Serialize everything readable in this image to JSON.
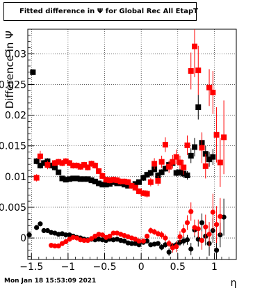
{
  "title": "Fitted difference in  Ψ  for Global Rec All EtapT",
  "footer": "Mon Jan 18 15:53:09 2021",
  "chart_data": {
    "type": "scatter",
    "title": "Fitted difference in  Ψ  for Global Rec All EtapT",
    "xlabel": "η",
    "ylabel": "Difference in  Ψ",
    "xlim": [
      -1.55,
      1.3
    ],
    "ylim": [
      -0.0035,
      0.034
    ],
    "x_ticks": [
      -1.5,
      -1,
      -0.5,
      0,
      0.5,
      1
    ],
    "x_tick_labels": [
      "−1.5",
      "−1",
      "−0.5",
      "0",
      "0.5",
      "1"
    ],
    "y_ticks": [
      0,
      0.005,
      0.01,
      0.015,
      0.02,
      0.025,
      0.03
    ],
    "y_tick_labels": [
      "0",
      "0.005",
      "0.01",
      "0.015",
      "0.02",
      "0.025",
      "0.03"
    ],
    "grid": true,
    "series": [
      {
        "color": "#000000",
        "marker": "square",
        "points": [
          [
            -1.48,
            0.027,
            0.0005
          ],
          [
            -1.43,
            0.0125,
            0.0005
          ],
          [
            -1.38,
            0.0118,
            0.0005
          ],
          [
            -1.33,
            0.0122,
            0.0005
          ],
          [
            -1.28,
            0.0125,
            0.0005
          ],
          [
            -1.23,
            0.0118,
            0.0005
          ],
          [
            -1.18,
            0.0115,
            0.0005
          ],
          [
            -1.13,
            0.0107,
            0.0004
          ],
          [
            -1.08,
            0.0097,
            0.0004
          ],
          [
            -1.03,
            0.0095,
            0.0004
          ],
          [
            -0.98,
            0.0096,
            0.0004
          ],
          [
            -0.93,
            0.0097,
            0.0004
          ],
          [
            -0.88,
            0.0097,
            0.0004
          ],
          [
            -0.83,
            0.0096,
            0.0004
          ],
          [
            -0.78,
            0.0096,
            0.0004
          ],
          [
            -0.73,
            0.0096,
            0.0004
          ],
          [
            -0.68,
            0.0094,
            0.0004
          ],
          [
            -0.63,
            0.0092,
            0.0004
          ],
          [
            -0.58,
            0.0089,
            0.0004
          ],
          [
            -0.53,
            0.0087,
            0.0004
          ],
          [
            -0.48,
            0.0087,
            0.0004
          ],
          [
            -0.43,
            0.0088,
            0.0004
          ],
          [
            -0.38,
            0.0091,
            0.0004
          ],
          [
            -0.33,
            0.0089,
            0.0004
          ],
          [
            -0.28,
            0.0089,
            0.0004
          ],
          [
            -0.23,
            0.0087,
            0.0004
          ],
          [
            -0.18,
            0.0085,
            0.0004
          ],
          [
            -0.13,
            0.0085,
            0.0004
          ],
          [
            -0.08,
            0.0088,
            0.0004
          ],
          [
            -0.03,
            0.0091,
            0.0004
          ],
          [
            0.03,
            0.0098,
            0.0005
          ],
          [
            0.08,
            0.0103,
            0.0005
          ],
          [
            0.13,
            0.0106,
            0.0005
          ],
          [
            0.18,
            0.0112,
            0.0005
          ],
          [
            0.23,
            0.0102,
            0.0005
          ],
          [
            0.28,
            0.0107,
            0.0005
          ],
          [
            0.33,
            0.0113,
            0.0005
          ],
          [
            0.38,
            0.0119,
            0.0006
          ],
          [
            0.43,
            0.0122,
            0.0006
          ],
          [
            0.48,
            0.0106,
            0.0006
          ],
          [
            0.53,
            0.0107,
            0.0006
          ],
          [
            0.58,
            0.0105,
            0.0007
          ],
          [
            0.63,
            0.0102,
            0.0007
          ],
          [
            0.68,
            0.0134,
            0.0012
          ],
          [
            0.73,
            0.0148,
            0.0015
          ],
          [
            0.78,
            0.0213,
            0.002
          ],
          [
            0.83,
            0.0155,
            0.0015
          ],
          [
            0.88,
            0.0137,
            0.0013
          ],
          [
            0.93,
            0.0128,
            0.0012
          ],
          [
            0.98,
            0.0132,
            0.0013
          ]
        ]
      },
      {
        "color": "#ff0000",
        "marker": "square",
        "points": [
          [
            -1.43,
            0.0098,
            0.0006
          ],
          [
            -1.38,
            0.0133,
            0.0009
          ],
          [
            -1.28,
            0.0119,
            0.0007
          ],
          [
            -1.18,
            0.0122,
            0.0005
          ],
          [
            -1.13,
            0.0124,
            0.0005
          ],
          [
            -1.08,
            0.0122,
            0.0005
          ],
          [
            -1.03,
            0.0125,
            0.0005
          ],
          [
            -0.98,
            0.0122,
            0.0005
          ],
          [
            -0.93,
            0.0118,
            0.0005
          ],
          [
            -0.88,
            0.0118,
            0.0005
          ],
          [
            -0.83,
            0.0116,
            0.0005
          ],
          [
            -0.78,
            0.0119,
            0.0005
          ],
          [
            -0.73,
            0.0115,
            0.0005
          ],
          [
            -0.68,
            0.0121,
            0.0005
          ],
          [
            -0.63,
            0.0118,
            0.0005
          ],
          [
            -0.58,
            0.0109,
            0.0005
          ],
          [
            -0.53,
            0.0101,
            0.0005
          ],
          [
            -0.48,
            0.0095,
            0.0005
          ],
          [
            -0.43,
            0.0094,
            0.0005
          ],
          [
            -0.38,
            0.0095,
            0.0005
          ],
          [
            -0.33,
            0.0094,
            0.0005
          ],
          [
            -0.28,
            0.0092,
            0.0005
          ],
          [
            -0.23,
            0.0092,
            0.0005
          ],
          [
            -0.18,
            0.0091,
            0.0005
          ],
          [
            -0.13,
            0.0085,
            0.0005
          ],
          [
            -0.08,
            0.0082,
            0.0005
          ],
          [
            -0.03,
            0.0076,
            0.0005
          ],
          [
            0.03,
            0.0073,
            0.0005
          ],
          [
            0.08,
            0.0072,
            0.0006
          ],
          [
            0.13,
            0.0091,
            0.0007
          ],
          [
            0.18,
            0.0121,
            0.0009
          ],
          [
            0.23,
            0.0093,
            0.0008
          ],
          [
            0.28,
            0.0124,
            0.001
          ],
          [
            0.33,
            0.0152,
            0.0012
          ],
          [
            0.38,
            0.0116,
            0.001
          ],
          [
            0.43,
            0.0124,
            0.0011
          ],
          [
            0.48,
            0.0132,
            0.0012
          ],
          [
            0.53,
            0.0123,
            0.0011
          ],
          [
            0.58,
            0.0115,
            0.0012
          ],
          [
            0.63,
            0.0151,
            0.0016
          ],
          [
            0.68,
            0.0272,
            0.003
          ],
          [
            0.73,
            0.0312,
            0.005
          ],
          [
            0.78,
            0.0273,
            0.004
          ],
          [
            0.83,
            0.0147,
            0.0025
          ],
          [
            0.88,
            0.0117,
            0.002
          ],
          [
            0.93,
            0.0245,
            0.003
          ],
          [
            0.98,
            0.0237,
            0.0035
          ],
          [
            1.03,
            0.0168,
            0.0045
          ],
          [
            1.08,
            0.0123,
            0.004
          ],
          [
            1.13,
            0.0164,
            0.006
          ]
        ]
      },
      {
        "color": "#000000",
        "marker": "circle",
        "points": [
          [
            -1.53,
            0.0005,
            0.0003
          ],
          [
            -1.43,
            0.0017,
            0.0004
          ],
          [
            -1.38,
            0.0023,
            0.0004
          ],
          [
            -1.33,
            0.0012,
            0.0003
          ],
          [
            -1.28,
            0.0012,
            0.0003
          ],
          [
            -1.23,
            0.0009,
            0.0003
          ],
          [
            -1.18,
            0.0008,
            0.0003
          ],
          [
            -1.13,
            0.0006,
            0.0003
          ],
          [
            -1.08,
            0.0007,
            0.0003
          ],
          [
            -1.03,
            0.0005,
            0.0003
          ],
          [
            -0.98,
            0.0005,
            0.0003
          ],
          [
            -0.93,
            0.0003,
            0.0003
          ],
          [
            -0.88,
            0.0001,
            0.0003
          ],
          [
            -0.83,
            0.0,
            0.0003
          ],
          [
            -0.78,
            -0.0002,
            0.0003
          ],
          [
            -0.73,
            -0.0003,
            0.0003
          ],
          [
            -0.68,
            -0.0002,
            0.0003
          ],
          [
            -0.63,
            -0.0003,
            0.0003
          ],
          [
            -0.58,
            -0.0002,
            0.0003
          ],
          [
            -0.53,
            -0.0003,
            0.0003
          ],
          [
            -0.48,
            -0.0004,
            0.0003
          ],
          [
            -0.43,
            -0.0002,
            0.0003
          ],
          [
            -0.38,
            -0.0003,
            0.0003
          ],
          [
            -0.33,
            -0.0002,
            0.0003
          ],
          [
            -0.28,
            -0.0004,
            0.0003
          ],
          [
            -0.23,
            -0.0005,
            0.0003
          ],
          [
            -0.18,
            -0.0008,
            0.0003
          ],
          [
            -0.13,
            -0.0009,
            0.0003
          ],
          [
            -0.08,
            -0.0009,
            0.0003
          ],
          [
            -0.03,
            -0.0011,
            0.0003
          ],
          [
            0.03,
            -0.0007,
            0.0003
          ],
          [
            0.08,
            -0.0005,
            0.0003
          ],
          [
            0.13,
            -0.0011,
            0.0003
          ],
          [
            0.18,
            -0.001,
            0.0003
          ],
          [
            0.23,
            -0.0009,
            0.0004
          ],
          [
            0.28,
            -0.0015,
            0.0005
          ],
          [
            0.33,
            -0.0011,
            0.0005
          ],
          [
            0.38,
            -0.0023,
            0.0006
          ],
          [
            0.43,
            -0.0013,
            0.0005
          ],
          [
            0.48,
            -0.0011,
            0.0006
          ],
          [
            0.53,
            -0.0007,
            0.0006
          ],
          [
            0.58,
            -0.0005,
            0.0007
          ],
          [
            0.63,
            -0.0003,
            0.0008
          ],
          [
            0.68,
            -0.0018,
            0.001
          ],
          [
            0.73,
            0.0013,
            0.0012
          ],
          [
            0.78,
            -0.0002,
            0.0012
          ],
          [
            0.83,
            0.0025,
            0.0015
          ],
          [
            0.88,
            0.0003,
            0.0015
          ],
          [
            0.93,
            -0.0009,
            0.002
          ],
          [
            0.98,
            0.0012,
            0.002
          ],
          [
            1.03,
            -0.002,
            0.002
          ],
          [
            1.08,
            0.0005,
            0.002
          ],
          [
            1.13,
            0.0034,
            0.003
          ]
        ]
      },
      {
        "color": "#ff0000",
        "marker": "circle",
        "points": [
          [
            -1.23,
            -0.0012,
            0.0004
          ],
          [
            -1.18,
            -0.0013,
            0.0004
          ],
          [
            -1.13,
            -0.0013,
            0.0004
          ],
          [
            -1.08,
            -0.0009,
            0.0004
          ],
          [
            -1.03,
            -0.0006,
            0.0004
          ],
          [
            -0.98,
            -0.0002,
            0.0004
          ],
          [
            -0.93,
            0.0001,
            0.0003
          ],
          [
            -0.88,
            0.0,
            0.0003
          ],
          [
            -0.83,
            -0.0003,
            0.0003
          ],
          [
            -0.78,
            -0.0004,
            0.0003
          ],
          [
            -0.73,
            -0.0004,
            0.0003
          ],
          [
            -0.68,
            -0.0001,
            0.0003
          ],
          [
            -0.63,
            0.0003,
            0.0003
          ],
          [
            -0.58,
            0.0006,
            0.0003
          ],
          [
            -0.53,
            0.0005,
            0.0003
          ],
          [
            -0.48,
            0.0001,
            0.0003
          ],
          [
            -0.43,
            0.0003,
            0.0003
          ],
          [
            -0.38,
            0.0008,
            0.0003
          ],
          [
            -0.33,
            0.0008,
            0.0003
          ],
          [
            -0.28,
            0.0006,
            0.0003
          ],
          [
            -0.23,
            0.0004,
            0.0003
          ],
          [
            -0.18,
            0.0002,
            0.0003
          ],
          [
            -0.13,
            0.0,
            0.0003
          ],
          [
            -0.08,
            -0.0002,
            0.0003
          ],
          [
            -0.03,
            -0.0005,
            0.0003
          ],
          [
            0.03,
            -0.0005,
            0.0004
          ],
          [
            0.08,
            0.0003,
            0.0004
          ],
          [
            0.13,
            0.0012,
            0.0005
          ],
          [
            0.18,
            0.001,
            0.0005
          ],
          [
            0.23,
            0.0007,
            0.0005
          ],
          [
            0.28,
            0.0005,
            0.0006
          ],
          [
            0.33,
            0.0,
            0.0006
          ],
          [
            0.38,
            -0.0009,
            0.0006
          ],
          [
            0.43,
            -0.0016,
            0.0008
          ],
          [
            0.48,
            -0.0014,
            0.0009
          ],
          [
            0.53,
            0.0002,
            0.0009
          ],
          [
            0.58,
            0.0012,
            0.001
          ],
          [
            0.63,
            0.0025,
            0.0012
          ],
          [
            0.68,
            0.0043,
            0.0015
          ],
          [
            0.73,
            0.0017,
            0.0013
          ],
          [
            0.78,
            0.0015,
            0.0015
          ],
          [
            0.83,
            -0.0004,
            0.0015
          ],
          [
            0.88,
            0.0018,
            0.002
          ],
          [
            0.93,
            0.0006,
            0.002
          ],
          [
            0.98,
            0.0042,
            0.003
          ],
          [
            1.03,
            0.0022,
            0.003
          ],
          [
            1.08,
            0.0035,
            0.003
          ]
        ]
      }
    ]
  }
}
